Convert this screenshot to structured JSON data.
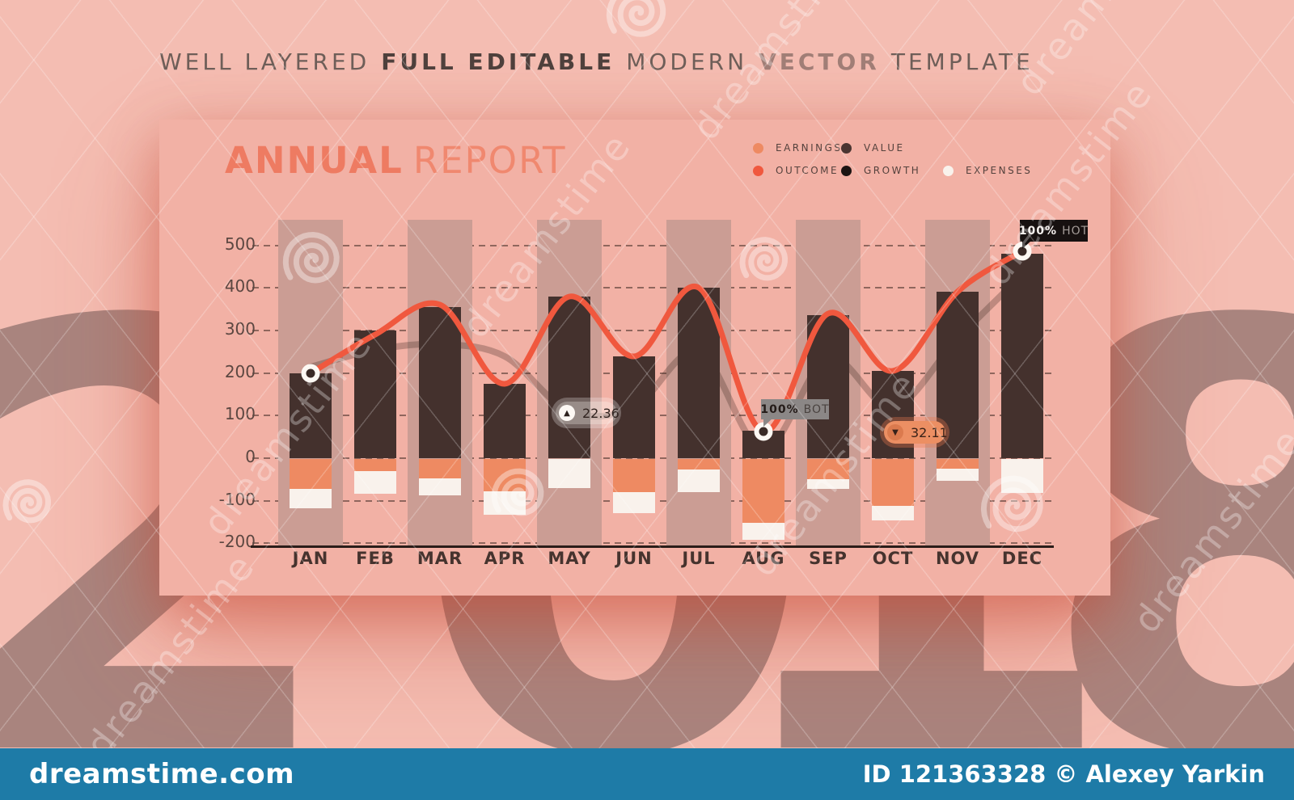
{
  "header": {
    "parts": [
      {
        "text": "WELL LAYERED",
        "style": "normal"
      },
      {
        "text": "FULL EDITABLE",
        "style": "bold"
      },
      {
        "text": "MODERN",
        "style": "normal"
      },
      {
        "text": "VECTOR",
        "style": "bold-faded"
      },
      {
        "text": "TEMPLATE",
        "style": "normal"
      }
    ]
  },
  "report_card": {
    "title_bold": "ANNUAL",
    "title_light": "REPORT",
    "title_color": "#ee7b62",
    "card_color": "#f2b1a5"
  },
  "legend": {
    "items": [
      {
        "label": "EARNINGS",
        "color": "#ee8a62"
      },
      {
        "label": "OUTCOME",
        "color": "#f0583e"
      },
      {
        "label": "VALUE",
        "color": "#4a3531"
      },
      {
        "label": "GROWTH",
        "color": "#1c1412"
      },
      {
        "label": "EXPENSES",
        "color": "#f9f2ec"
      }
    ]
  },
  "chart_data": {
    "type": "bar+line",
    "title": "ANNUAL REPORT",
    "categories": [
      "JAN",
      "FEB",
      "MAR",
      "APR",
      "MAY",
      "JUN",
      "JUL",
      "AUG",
      "SEP",
      "OCT",
      "NOV",
      "DEC"
    ],
    "yticks": [
      500,
      400,
      300,
      200,
      100,
      0,
      -100,
      -200
    ],
    "ylim": [
      -200,
      560
    ],
    "grid": "dashed horizontal",
    "legend_position": "top-right",
    "series": [
      {
        "name": "VALUE",
        "type": "bar",
        "color": "#44312d",
        "values": [
          200,
          300,
          355,
          175,
          380,
          240,
          400,
          65,
          335,
          205,
          390,
          480
        ]
      },
      {
        "name": "EARNINGS",
        "type": "bar",
        "stack": "below-zero",
        "color": "#ee8a62",
        "values": [
          -70,
          -28,
          -45,
          -75,
          0,
          -78,
          -25,
          -150,
          -48,
          -110,
          -22,
          0
        ]
      },
      {
        "name": "EXPENSES",
        "type": "bar",
        "stack": "below-zero",
        "color": "#f9f2ec",
        "values": [
          -45,
          -54,
          -40,
          -55,
          -68,
          -50,
          -53,
          -40,
          -22,
          -35,
          -28,
          -80
        ]
      },
      {
        "name": "OUTCOME",
        "type": "line",
        "color": "#f0583e",
        "values": [
          200,
          290,
          360,
          175,
          380,
          240,
          400,
          63,
          340,
          205,
          390,
          486
        ]
      },
      {
        "name": "GROWTH",
        "type": "line",
        "color": "rgba(58,36,30,0.28)",
        "values": [
          215,
          255,
          268,
          240,
          110,
          120,
          250,
          20,
          235,
          120,
          280,
          430
        ]
      }
    ],
    "background_columns": {
      "months": [
        "JAN",
        "MAR",
        "MAY",
        "JUL",
        "SEP",
        "NOV"
      ],
      "color": "#cb9d94",
      "top_value": 560
    },
    "point_markers": [
      {
        "month": "JAN",
        "value": 200
      },
      {
        "month": "AUG",
        "value": 63
      },
      {
        "month": "DEC",
        "value": 486
      }
    ],
    "annotations": [
      {
        "kind": "pill",
        "icon": "▲",
        "text": "22.36",
        "theme": "light",
        "near_month": "JUN"
      },
      {
        "kind": "tag",
        "bold": "100%",
        "label": "BOT",
        "theme": "gray",
        "near_month": "AUG"
      },
      {
        "kind": "pill",
        "icon": "▼",
        "text": "32.11",
        "theme": "orange",
        "near_month": "OCT"
      },
      {
        "kind": "tag",
        "bold": "100%",
        "label": "HOT",
        "theme": "black",
        "near_month": "DEC"
      }
    ]
  },
  "background": {
    "year_digits": [
      "2",
      "0",
      "1",
      "8"
    ],
    "digit_color": "#a9847e"
  },
  "watermark": {
    "diagonal_text": "dreamstime",
    "site": "dreamstime.com",
    "credit": "ID 121363328 © Alexey Yarkin",
    "bar_color": "#1e7ba7"
  }
}
